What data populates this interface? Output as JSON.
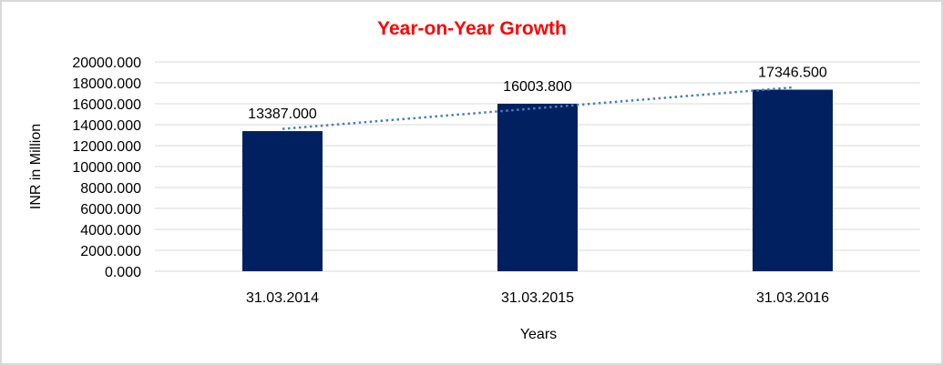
{
  "chart_data": {
    "type": "bar",
    "title": "Year-on-Year Growth",
    "xlabel": "Years",
    "ylabel": "INR in Million",
    "categories": [
      "31.03.2014",
      "31.03.2015",
      "31.03.2016"
    ],
    "values": [
      13387.0,
      16003.8,
      17346.5
    ],
    "data_labels": [
      "13387.000",
      "16003.800",
      "17346.500"
    ],
    "ylim": [
      0,
      20000
    ],
    "yticks": [
      "0.000",
      "2000.000",
      "4000.000",
      "6000.000",
      "8000.000",
      "10000.000",
      "12000.000",
      "14000.000",
      "16000.000",
      "18000.000",
      "20000.000"
    ],
    "grid": true,
    "trendline": "linear",
    "colors": {
      "bar": "#002060",
      "trendline": "#4A7EBB",
      "title": "#FF0000",
      "grid": "#D9D9D9"
    }
  }
}
